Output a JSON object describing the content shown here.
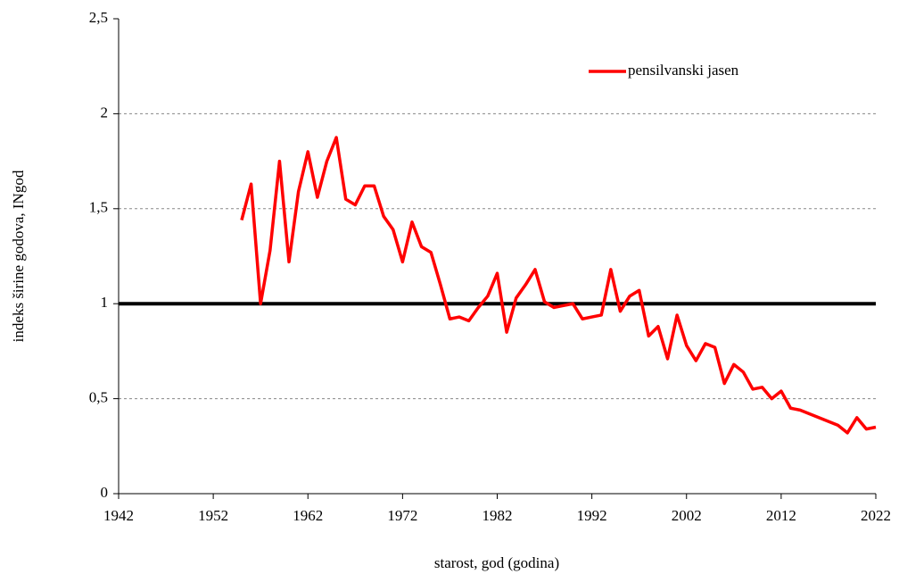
{
  "chart_data": {
    "type": "line",
    "x_label": "starost, god (godina)",
    "y_label": "indeks širine godova, INgod",
    "x": [
      1955,
      1956,
      1957,
      1958,
      1959,
      1960,
      1961,
      1962,
      1963,
      1964,
      1965,
      1966,
      1967,
      1968,
      1969,
      1970,
      1971,
      1972,
      1973,
      1974,
      1975,
      1976,
      1977,
      1978,
      1979,
      1980,
      1981,
      1982,
      1983,
      1984,
      1985,
      1986,
      1987,
      1988,
      1989,
      1990,
      1991,
      1992,
      1993,
      1994,
      1995,
      1996,
      1997,
      1998,
      1999,
      2000,
      2001,
      2002,
      2003,
      2004,
      2005,
      2006,
      2007,
      2008,
      2009,
      2010,
      2011,
      2012,
      2013,
      2014,
      2015,
      2016,
      2017,
      2018,
      2019,
      2020,
      2021,
      2022
    ],
    "series": [
      {
        "name": "pensilvanski jasen",
        "color": "#ff0000",
        "values": [
          1.44,
          1.63,
          1.0,
          1.28,
          1.75,
          1.22,
          1.59,
          1.8,
          1.56,
          1.75,
          1.875,
          1.55,
          1.52,
          1.62,
          1.62,
          1.46,
          1.39,
          1.22,
          1.43,
          1.3,
          1.27,
          1.1,
          0.92,
          0.93,
          0.91,
          0.98,
          1.04,
          1.16,
          0.85,
          1.03,
          1.1,
          1.18,
          1.01,
          0.98,
          0.99,
          1.0,
          0.92,
          0.93,
          0.94,
          1.18,
          0.96,
          1.04,
          1.07,
          0.83,
          0.88,
          0.71,
          0.94,
          0.78,
          0.7,
          0.79,
          0.77,
          0.58,
          0.68,
          0.64,
          0.55,
          0.56,
          0.5,
          0.54,
          0.45,
          0.44,
          0.42,
          0.4,
          0.38,
          0.36,
          0.32,
          0.4,
          0.34,
          0.35
        ]
      }
    ],
    "reference_line": {
      "value": 1,
      "color": "#000000"
    },
    "xlim": [
      1942,
      2022
    ],
    "xticks": [
      1942,
      1952,
      1962,
      1972,
      1982,
      1992,
      2002,
      2012,
      2022
    ],
    "ylim": [
      0,
      2.5
    ],
    "yticks": [
      0,
      {
        "value": 0.5,
        "label": "0,5"
      },
      1,
      {
        "value": 1.5,
        "label": "1,5"
      },
      2,
      {
        "value": 2.5,
        "label": "2,5"
      }
    ],
    "grid": true,
    "legend": "upper right"
  }
}
